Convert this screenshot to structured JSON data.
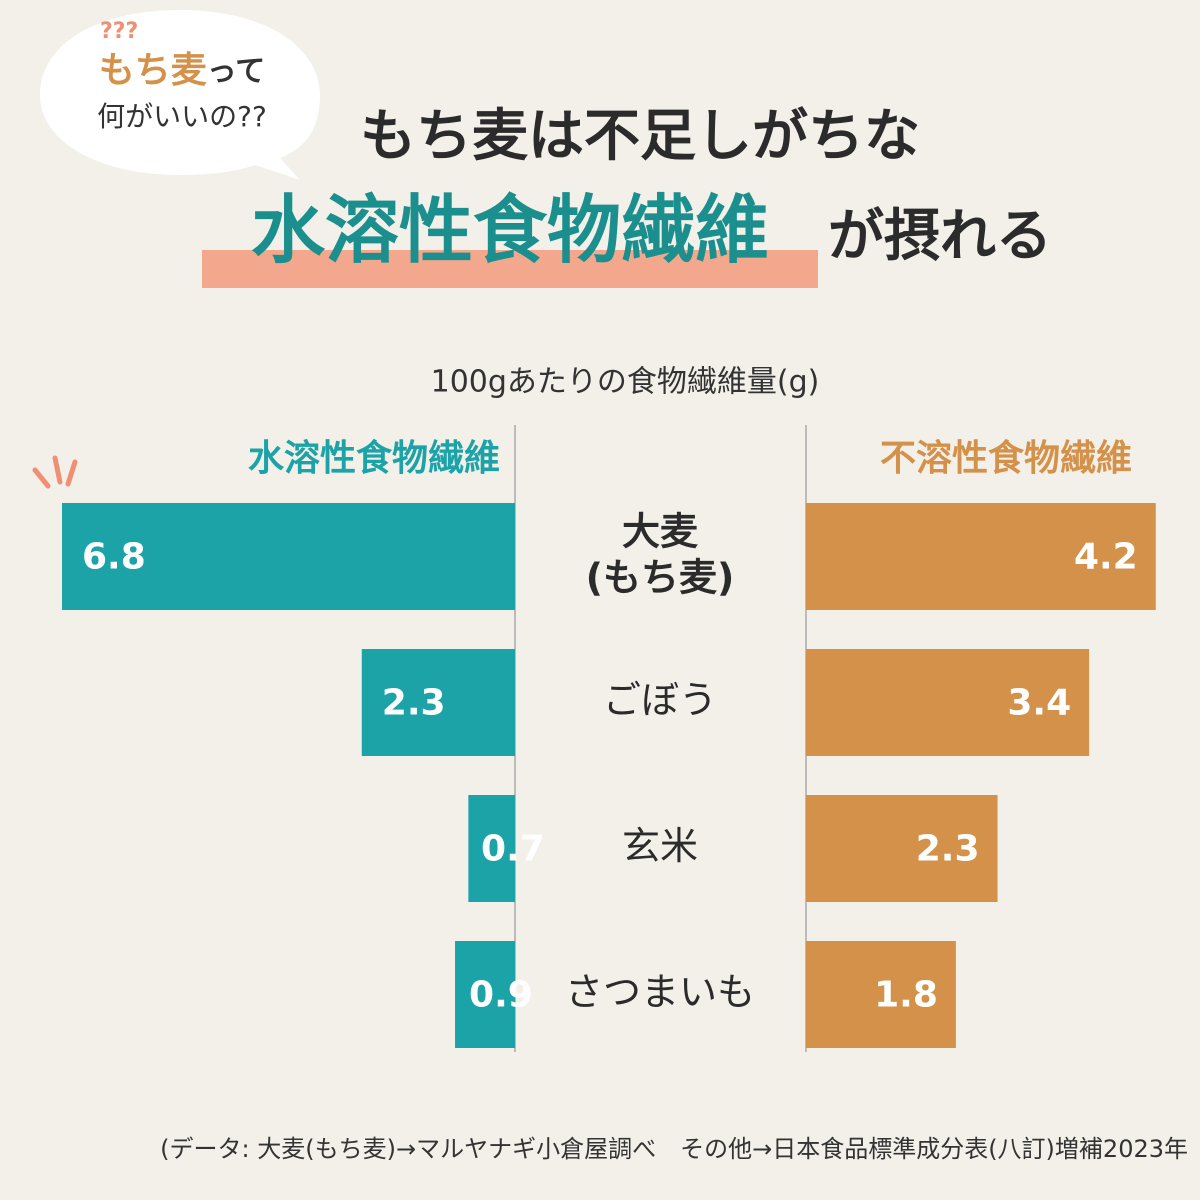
{
  "chart_data": {
    "type": "butterfly",
    "badge": {
      "highlight": "もち麦",
      "rest": "って",
      "line2": "何がいいの??",
      "marks": "???"
    },
    "title": {
      "line1": "もち麦は不足しがちな",
      "highlight": "水溶性食物繊維",
      "suffix": "が摂れる"
    },
    "subtitle": "100gあたりの食物繊維量(g)",
    "categories": [
      "大麦\n(もち麦)",
      "ごぼう",
      "玄米",
      "さつまいも"
    ],
    "series": [
      {
        "name": "水溶性食物繊維",
        "color": "#1ba3a8",
        "values": [
          6.8,
          2.3,
          0.7,
          0.9
        ]
      },
      {
        "name": "不溶性食物繊維",
        "color": "#d4914a",
        "values": [
          4.2,
          3.4,
          2.3,
          1.8
        ]
      }
    ],
    "source": "(データ: 大麦(もち麦)→マルヤナギ小倉屋調べ　その他→日本食品標準成分表(八訂)増補2023年"
  }
}
